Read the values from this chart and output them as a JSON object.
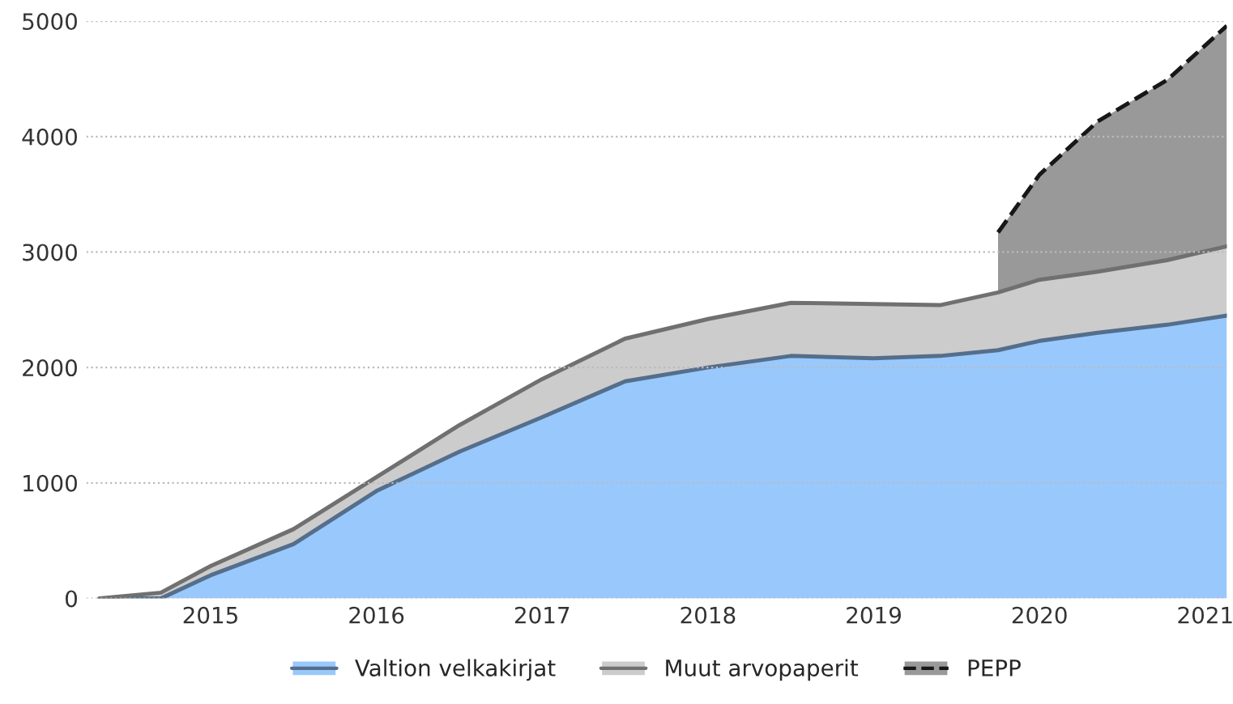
{
  "chart_data": {
    "type": "area",
    "stacked": true,
    "x": [
      2014.83,
      2015.2,
      2015.5,
      2016,
      2016.5,
      2017,
      2017.5,
      2018,
      2018.5,
      2019,
      2019.5,
      2019.9,
      2020.25,
      2020.5,
      2020.85,
      2021.27,
      2021.63
    ],
    "series": [
      {
        "name": "Valtion velkakirjat",
        "color": "#99c8fc",
        "line_style": "solid",
        "values": [
          0,
          0,
          200,
          470,
          930,
          1270,
          1570,
          1880,
          2000,
          2100,
          2080,
          2100,
          2150,
          2230,
          2300,
          2370,
          2450
        ]
      },
      {
        "name": "Muut arvopaperit",
        "color": "#cccccc",
        "line_style": "solid",
        "values": [
          0,
          50,
          80,
          130,
          120,
          230,
          330,
          370,
          420,
          460,
          470,
          440,
          500,
          530,
          530,
          560,
          600
        ]
      },
      {
        "name": "PEPP",
        "color": "#999999",
        "line_style": "dashed",
        "values": [
          null,
          null,
          null,
          null,
          null,
          null,
          null,
          null,
          null,
          null,
          null,
          null,
          520,
          910,
          1300,
          1560,
          1910
        ]
      }
    ],
    "xlim": [
      2014.75,
      2021.63
    ],
    "xticks": [
      {
        "value": 2015.5,
        "label": "2015"
      },
      {
        "value": 2016.5,
        "label": "2016"
      },
      {
        "value": 2017.5,
        "label": "2017"
      },
      {
        "value": 2018.5,
        "label": "2018"
      },
      {
        "value": 2019.5,
        "label": "2019"
      },
      {
        "value": 2020.5,
        "label": "2020"
      },
      {
        "value": 2021.5,
        "label": "2021"
      }
    ],
    "ylim": [
      0,
      5000
    ],
    "yticks": [
      0,
      1000,
      2000,
      3000,
      4000,
      5000
    ],
    "grid": "y",
    "legend": "bottom"
  }
}
